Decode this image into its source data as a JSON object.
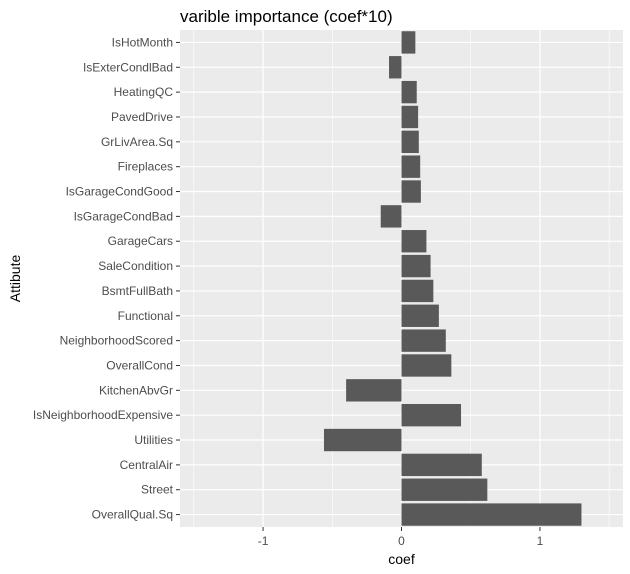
{
  "chart_data": {
    "type": "bar",
    "orientation": "horizontal",
    "title": "varible importance (coef*10)",
    "xlabel": "coef",
    "ylabel": "Attibute",
    "xlim": [
      -1.6,
      1.6
    ],
    "x_ticks": [
      -1,
      0,
      1
    ],
    "x_tick_labels": [
      "-1",
      "0",
      "1"
    ],
    "grid": true,
    "categories": [
      "OverallQual.Sq",
      "Street",
      "CentralAir",
      "Utilities",
      "IsNeighborhoodExpensive",
      "KitchenAbvGr",
      "OverallCond",
      "NeighborhoodScored",
      "Functional",
      "BsmtFullBath",
      "SaleCondition",
      "GarageCars",
      "IsGarageCondBad",
      "IsGarageCondGood",
      "Fireplaces",
      "GrLivArea.Sq",
      "PavedDrive",
      "HeatingQC",
      "IsExterCondlBad",
      "IsHotMonth"
    ],
    "values": [
      1.3,
      0.62,
      0.58,
      -0.56,
      0.43,
      -0.4,
      0.36,
      0.32,
      0.27,
      0.23,
      0.21,
      0.18,
      -0.15,
      0.14,
      0.135,
      0.125,
      0.12,
      0.11,
      -0.09,
      0.1
    ],
    "colors": {
      "bar": "#595959",
      "panel": "#ebebeb",
      "grid": "#ffffff"
    }
  }
}
